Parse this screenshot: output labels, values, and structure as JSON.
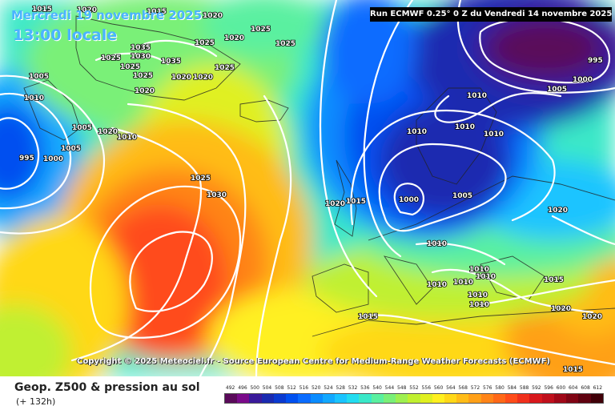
{
  "header": {
    "date_line": "Mercredi 19 novembre 2025",
    "time_line": "13:00 locale",
    "run_info": "Run ECMWF 0.25° 0 Z du Vendredi 14 novembre 2025"
  },
  "copyright": "Copyright © 2025 Meteociel.fr - Source European Centre for Medium-Range Weather Forecasts (ECMWF)",
  "footer": {
    "field_title": "Geop. Z500 & pression au sol",
    "lead_time": "(+ 132h)"
  },
  "legend": {
    "values": [
      "492",
      "496",
      "500",
      "504",
      "508",
      "512",
      "516",
      "520",
      "524",
      "528",
      "532",
      "536",
      "540",
      "544",
      "548",
      "552",
      "556",
      "560",
      "564",
      "568",
      "572",
      "576",
      "580",
      "584",
      "588",
      "592",
      "596",
      "600",
      "604",
      "608",
      "612"
    ],
    "colors": [
      "#5a0a5a",
      "#7a0a8a",
      "#3a1a9a",
      "#1a2ab0",
      "#0a3ad0",
      "#0050f0",
      "#0a6cff",
      "#0a8cff",
      "#12a8ff",
      "#1ac4ff",
      "#22dcf0",
      "#3ae8c8",
      "#5af0a0",
      "#7af078",
      "#9ef050",
      "#c0f030",
      "#e0f020",
      "#fff020",
      "#ffd818",
      "#ffbc18",
      "#ffa018",
      "#ff8418",
      "#ff6818",
      "#ff4c1a",
      "#f0301c",
      "#d8181c",
      "#c0101c",
      "#a00818",
      "#800414",
      "#600210",
      "#400008"
    ]
  },
  "isobar_labels": [
    "1015",
    "1020",
    "1015",
    "1025",
    "1020",
    "1025",
    "1025",
    "1035",
    "1025",
    "1030",
    "1035",
    "1025",
    "1020",
    "1025",
    "1025",
    "1020",
    "1020",
    "1020",
    "1010",
    "1005",
    "1000",
    "995",
    "1005",
    "1020",
    "1010",
    "1005",
    "1025",
    "1030",
    "1020",
    "1015",
    "1000",
    "1005",
    "1010",
    "1010",
    "1010",
    "1010",
    "1005",
    "1000",
    "1010",
    "1010",
    "1010",
    "1010",
    "1010",
    "1010",
    "1015",
    "1015",
    "1020",
    "1020",
    "1020",
    "1015"
  ],
  "colors": {
    "run_box_bg": "#000000",
    "title_blue": "#4ab4ff",
    "isobar": "#ffffff"
  }
}
